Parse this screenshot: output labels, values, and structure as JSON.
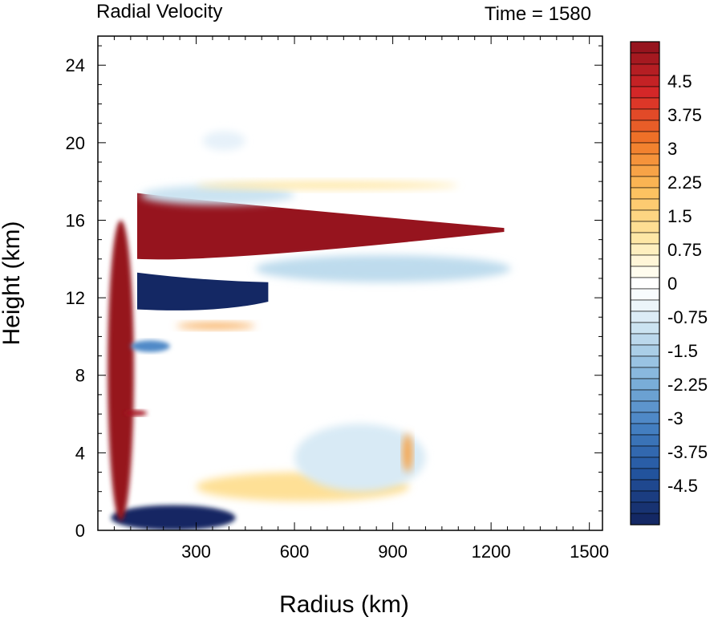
{
  "chart_data": {
    "type": "heatmap",
    "title": "Radial Velocity",
    "annotation": "Time = 1580",
    "xlabel": "Radius (km)",
    "ylabel": "Height (km)",
    "xlim": [
      0,
      1540
    ],
    "ylim": [
      0,
      25.5
    ],
    "x_ticks": [
      300,
      600,
      900,
      1200,
      1500
    ],
    "y_ticks": [
      0,
      4,
      8,
      12,
      16,
      20,
      24
    ],
    "colorbar": {
      "min": -5.25,
      "max": 5.25,
      "step": 0.25,
      "labels": [
        "4.5",
        "3.75",
        "3",
        "2.25",
        "1.5",
        "0.75",
        "0",
        "-0.75",
        "-1.5",
        "-2.25",
        "-3",
        "-3.75",
        "-4.5"
      ],
      "label_values": [
        4.5,
        3.75,
        3,
        2.25,
        1.5,
        0.75,
        0,
        -0.75,
        -1.5,
        -2.25,
        -3,
        -3.75,
        -4.5
      ]
    },
    "features": [
      {
        "type": "band",
        "value": 6.0,
        "x": [
          120,
          1240
        ],
        "y_upper": [
          17.4,
          15.6
        ],
        "y_lower": [
          14.0,
          15.4
        ]
      },
      {
        "type": "band",
        "value": -5.5,
        "x": [
          120,
          520
        ],
        "y_upper": [
          13.3,
          12.8
        ],
        "y_lower": [
          11.4,
          11.8
        ]
      },
      {
        "type": "blob",
        "value": -1.2,
        "x": [
          480,
          1260
        ],
        "y": [
          14.2,
          12.8
        ]
      },
      {
        "type": "blob",
        "value": -5.5,
        "x": [
          40,
          420
        ],
        "y": [
          0,
          1.3
        ]
      },
      {
        "type": "blob",
        "value": 6.0,
        "x": [
          30,
          110
        ],
        "y": [
          0.5,
          16.0
        ]
      },
      {
        "type": "blob",
        "value": 2.5,
        "x": [
          240,
          480
        ],
        "y": [
          10.4,
          10.7
        ]
      },
      {
        "type": "blob",
        "value": 5.0,
        "x": [
          80,
          150
        ],
        "y": [
          5.9,
          6.2
        ]
      },
      {
        "type": "blob",
        "value": -3.0,
        "x": [
          100,
          220
        ],
        "y": [
          9.2,
          9.8
        ]
      },
      {
        "type": "blob",
        "value": -1.0,
        "x": [
          130,
          600
        ],
        "y": [
          17.8,
          16.8
        ]
      },
      {
        "type": "blob",
        "value": 1.0,
        "x": [
          300,
          1100
        ],
        "y": [
          18.0,
          17.6
        ]
      },
      {
        "type": "blob",
        "value": -0.6,
        "x": [
          320,
          450
        ],
        "y": [
          20.6,
          19.6
        ]
      },
      {
        "type": "blob",
        "value": 1.2,
        "x": [
          300,
          950
        ],
        "y": [
          3.0,
          1.5
        ]
      },
      {
        "type": "blob",
        "value": -0.8,
        "x": [
          600,
          1000
        ],
        "y": [
          5.5,
          2.0
        ]
      },
      {
        "type": "blob",
        "value": 2.5,
        "x": [
          930,
          960
        ],
        "y": [
          5.0,
          3.0
        ]
      }
    ]
  }
}
